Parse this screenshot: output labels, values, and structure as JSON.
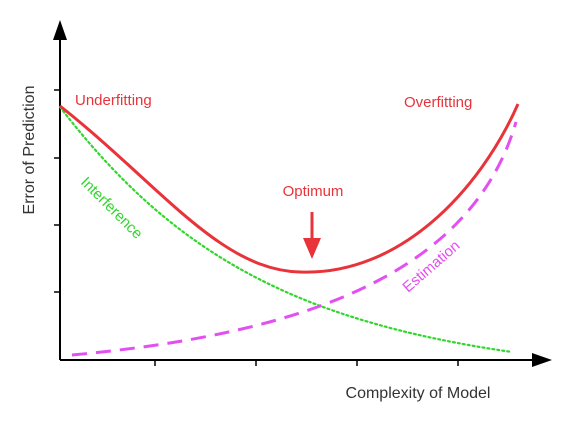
{
  "axes": {
    "x_label": "Complexity of Model",
    "y_label": "Error of Prediction"
  },
  "labels": {
    "underfitting": "Underfitting",
    "overfitting": "Overfitting",
    "optimum": "Optimum",
    "interference": "Interference",
    "estimation": "Estimation"
  },
  "colors": {
    "total_error": "#e8333a",
    "interference": "#33d62e",
    "estimation": "#e34ff0",
    "axis": "#000000",
    "axis_text": "#333333"
  }
}
